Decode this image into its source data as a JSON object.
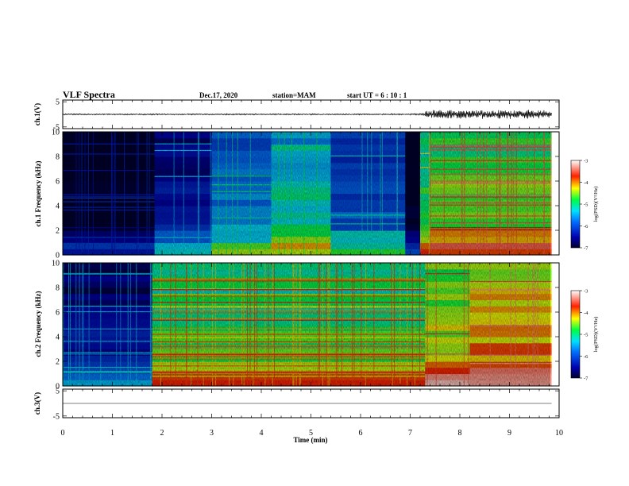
{
  "header": {
    "title": "VLF Spectra",
    "date": "Dec.17, 2020",
    "station": "station=MAM",
    "start_ut": "start UT =  6 : 10 : 1"
  },
  "chart_data": [
    {
      "type": "line",
      "name": "ch1-waveform",
      "ylabel": "ch.1(V)",
      "xlim": [
        0,
        10
      ],
      "ylim": [
        -5,
        5
      ],
      "yticks": [
        "5",
        "-5"
      ],
      "segments": [
        {
          "t_start": 0.0,
          "t_end": 7.0,
          "amplitude_v": 0.4
        },
        {
          "t_start": 7.0,
          "t_end": 7.3,
          "amplitude_v": 0.6
        },
        {
          "t_start": 7.3,
          "t_end": 9.85,
          "amplitude_v": 2.6
        }
      ]
    },
    {
      "type": "heatmap",
      "name": "ch1-spectrogram",
      "ylabel": "ch.1 Frequency (kHz)",
      "xlim": [
        0,
        10
      ],
      "ylim": [
        0,
        10
      ],
      "yticks": [
        "0",
        "2",
        "4",
        "6",
        "8",
        "10"
      ],
      "data_end_min": 9.85,
      "colorbar": {
        "label": "log(PSD)(V²/Hz)",
        "range": [
          -7,
          -3
        ],
        "ticks": [
          "-3",
          "-4",
          "-5",
          "-6",
          "-7"
        ]
      },
      "segments": [
        {
          "t_start": 0.0,
          "t_end": 1.85,
          "log_psd": -6.9,
          "note_values": [
            -6.2,
            -6.4
          ]
        },
        {
          "t_start": 1.85,
          "t_end": 3.0,
          "log_psd": -6.2,
          "note_values": [
            -5.4
          ]
        },
        {
          "t_start": 3.0,
          "t_end": 4.2,
          "log_psd": -5.4,
          "note_values": [
            -5.0
          ]
        },
        {
          "t_start": 4.2,
          "t_end": 5.4,
          "log_psd": -5.0,
          "note_values": [
            -4.8
          ]
        },
        {
          "t_start": 5.4,
          "t_end": 6.9,
          "log_psd": -5.7,
          "note_values": [
            -5.2
          ]
        },
        {
          "t_start": 6.9,
          "t_end": 7.2,
          "log_psd": -6.9,
          "note_values": []
        },
        {
          "t_start": 7.2,
          "t_end": 7.4,
          "log_psd": -4.6,
          "note_values": [
            -4.2
          ]
        },
        {
          "t_start": 7.4,
          "t_end": 9.85,
          "log_psd": -4.4,
          "note_values": [
            -3.6,
            -3.5
          ]
        }
      ]
    },
    {
      "type": "heatmap",
      "name": "ch2-spectrogram",
      "ylabel": "ch.2 Frequency (kHz)",
      "xlim": [
        0,
        10
      ],
      "ylim": [
        0,
        10
      ],
      "yticks": [
        "0",
        "2",
        "4",
        "6",
        "8",
        "10"
      ],
      "data_end_min": 9.85,
      "colorbar": {
        "label": "log(PSD)(V²/Hz)",
        "range": [
          -7,
          -3
        ],
        "ticks": [
          "-3",
          "-4",
          "-5",
          "-6",
          "-7"
        ]
      },
      "segments": [
        {
          "t_start": 0.0,
          "t_end": 1.8,
          "log_psd": -6.3,
          "note_values": [
            -5.5,
            -5.3
          ]
        },
        {
          "t_start": 1.8,
          "t_end": 7.3,
          "log_psd": -4.6,
          "note_values": [
            -4.2,
            -3.8
          ]
        },
        {
          "t_start": 7.3,
          "t_end": 8.2,
          "log_psd": -4.2,
          "note_values": [
            -3.6
          ]
        },
        {
          "t_start": 8.2,
          "t_end": 9.85,
          "log_psd": -3.9,
          "note_values": [
            -3.4
          ]
        }
      ]
    },
    {
      "type": "line",
      "name": "ch3-waveform",
      "ylabel": "ch.3(V)",
      "xlabel": "Time (min)",
      "xlim": [
        0,
        10
      ],
      "ylim": [
        -5,
        5
      ],
      "yticks": [
        "5",
        "-5"
      ],
      "xticks": [
        "0",
        "1",
        "2",
        "3",
        "4",
        "5",
        "6",
        "7",
        "8",
        "9",
        "10"
      ],
      "segments": [
        {
          "t_start": 0.0,
          "t_end": 9.85,
          "amplitude_v": 0.0
        }
      ]
    }
  ]
}
